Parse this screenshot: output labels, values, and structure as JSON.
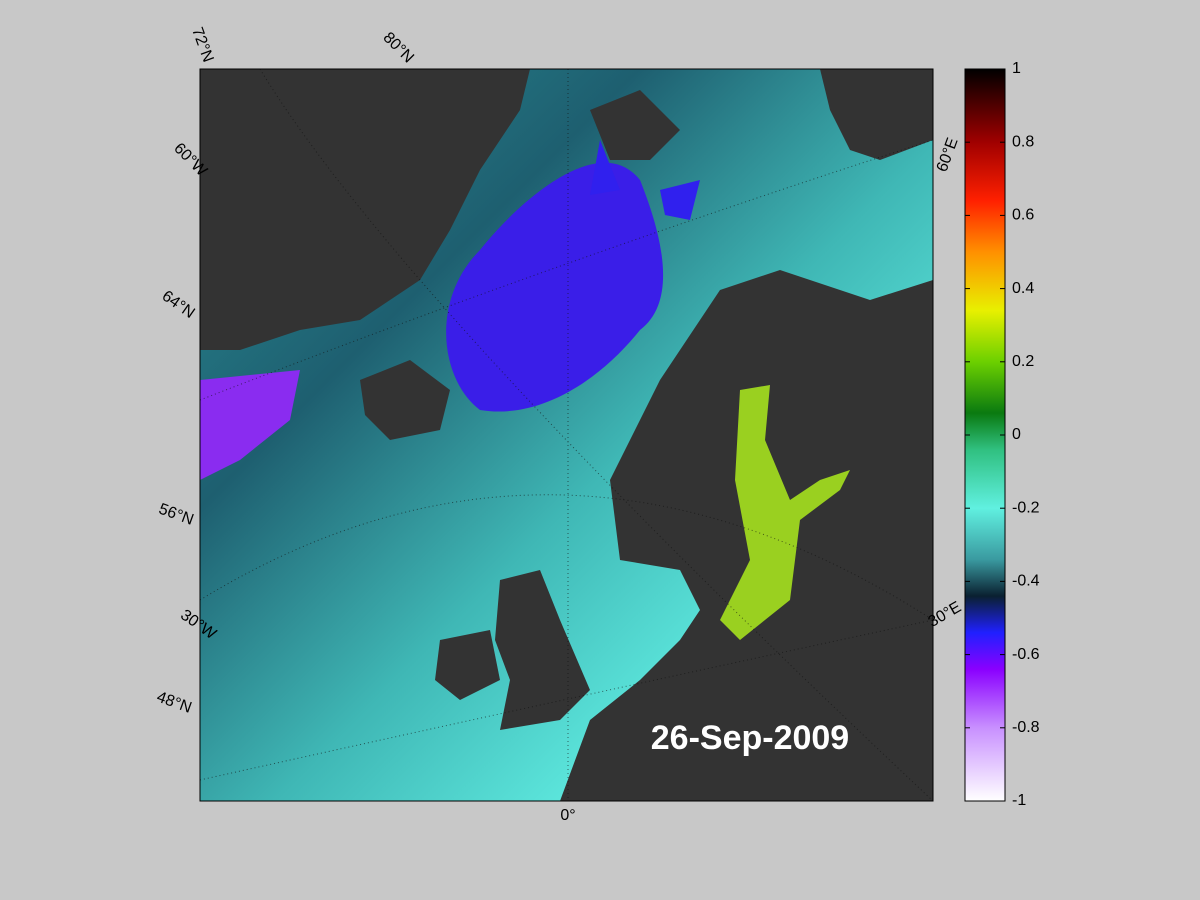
{
  "map": {
    "graticule_labels": [
      "72°N",
      "80°N",
      "60°W",
      "64°N",
      "56°N",
      "30°W",
      "48°N",
      "0°",
      "60°E",
      "30°E"
    ],
    "date": "26-Sep-2009"
  },
  "colorbar": {
    "lim": [
      -1,
      1
    ],
    "ticks": [
      1,
      0.8,
      0.6,
      0.4,
      0.2,
      0,
      -0.2,
      -0.4,
      -0.6,
      -0.8,
      -1
    ]
  }
}
